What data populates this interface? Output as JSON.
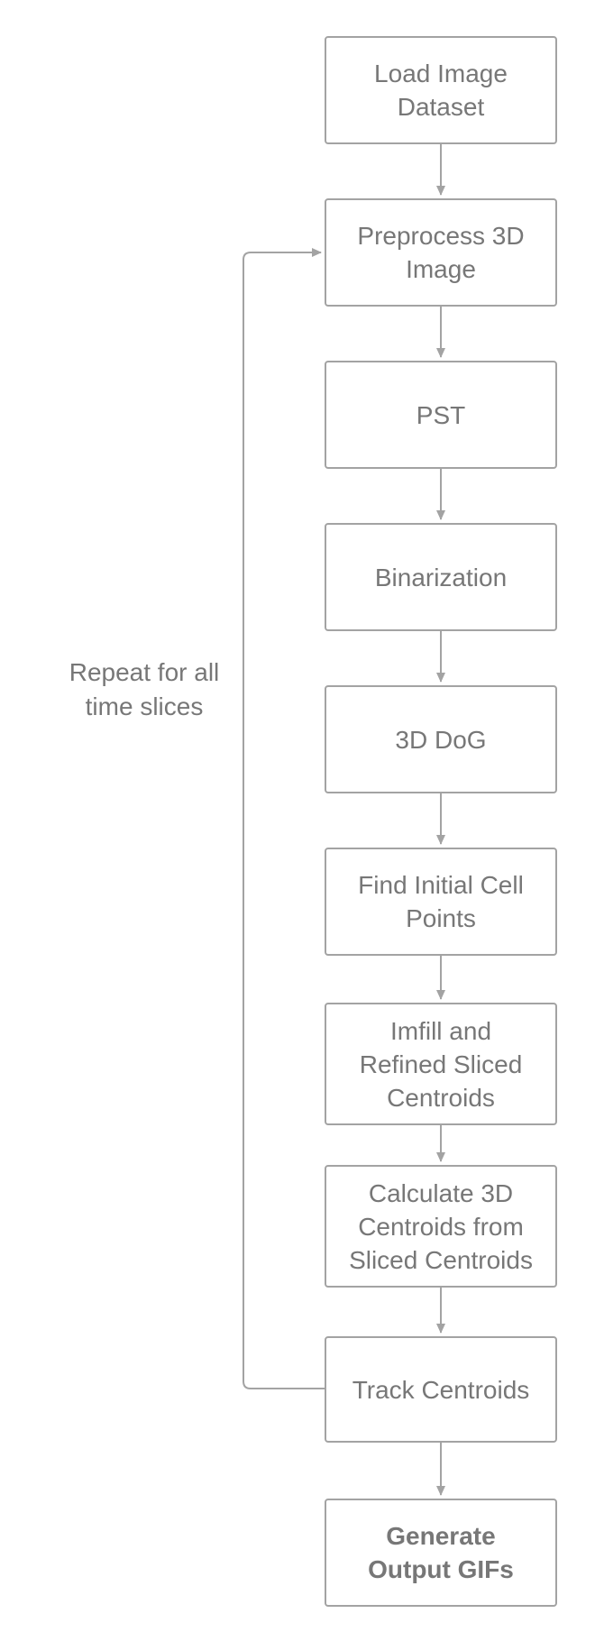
{
  "diagram": {
    "nodes": [
      {
        "id": "load",
        "label": "Load Image\nDataset"
      },
      {
        "id": "preprocess",
        "label": "Preprocess 3D\nImage"
      },
      {
        "id": "pst",
        "label": "PST"
      },
      {
        "id": "binarization",
        "label": "Binarization"
      },
      {
        "id": "dog",
        "label": "3D DoG"
      },
      {
        "id": "find-initial",
        "label": "Find Initial Cell\nPoints"
      },
      {
        "id": "imfill",
        "label": "Imfill and\nRefined Sliced\nCentroids"
      },
      {
        "id": "calc-3d",
        "label": "Calculate 3D\nCentroids from\nSliced Centroids"
      },
      {
        "id": "track",
        "label": "Track Centroids"
      },
      {
        "id": "generate",
        "label": "Generate\nOutput GIFs"
      }
    ],
    "loop_label": "Repeat for all\ntime slices",
    "colors": {
      "border": "#a3a3a3",
      "text": "#777777",
      "connector": "#a3a3a3"
    }
  }
}
